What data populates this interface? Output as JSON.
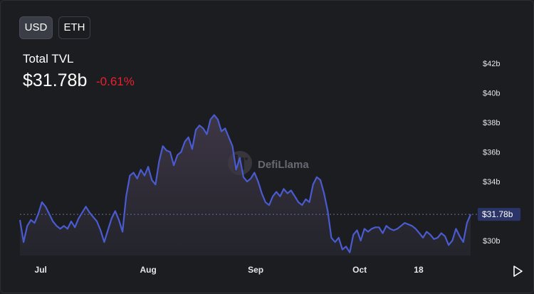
{
  "toggles": {
    "usd_label": "USD",
    "eth_label": "ETH",
    "active": "USD"
  },
  "summary": {
    "label": "Total TVL",
    "value": "$31.78b",
    "change": "-0.61%"
  },
  "watermark": "DefiLlama",
  "current_label": "$31.78b",
  "colors": {
    "line": "#4a5bd0",
    "negative": "#e8202e",
    "background": "#1c1d21",
    "current_badge": "#2b3568"
  },
  "chart_data": {
    "type": "area",
    "title": "",
    "xlabel": "",
    "ylabel": "",
    "ylim": [
      29.0,
      42.5
    ],
    "y_ticks": [
      {
        "value": 30,
        "label": "$30b"
      },
      {
        "value": 34,
        "label": "$34b"
      },
      {
        "value": 36,
        "label": "$36b"
      },
      {
        "value": 38,
        "label": "$38b"
      },
      {
        "value": 40,
        "label": "$40b"
      },
      {
        "value": 42,
        "label": "$42b"
      }
    ],
    "x_ticks": [
      {
        "label": "Jul",
        "day": 6
      },
      {
        "label": "Aug",
        "day": 37
      },
      {
        "label": "Sep",
        "day": 68
      },
      {
        "label": "Oct",
        "day": 98
      },
      {
        "label": "18",
        "day": 115
      }
    ],
    "x_range_days": [
      0,
      130
    ],
    "current_value": 31.78,
    "series": [
      {
        "values": [
          31.4,
          29.9,
          31.0,
          31.4,
          31.2,
          31.8,
          32.6,
          32.3,
          31.8,
          31.3,
          31.0,
          30.8,
          31.0,
          30.8,
          31.3,
          30.9,
          31.5,
          31.9,
          32.3,
          31.9,
          31.6,
          31.3,
          30.7,
          29.9,
          30.7,
          31.5,
          32.0,
          31.4,
          30.6,
          33.0,
          34.4,
          34.6,
          34.2,
          34.8,
          34.4,
          35.0,
          34.1,
          33.8,
          35.4,
          36.4,
          36.1,
          36.0,
          35.1,
          35.8,
          36.0,
          36.7,
          37.0,
          36.2,
          37.5,
          37.8,
          37.6,
          37.2,
          38.2,
          38.5,
          38.2,
          37.4,
          37.6,
          37.0,
          36.4,
          34.8,
          35.6,
          34.3,
          34.0,
          34.2,
          34.6,
          34.0,
          33.2,
          32.6,
          32.4,
          33.0,
          33.3,
          33.0,
          33.5,
          33.2,
          33.4,
          33.0,
          32.6,
          32.4,
          32.8,
          32.6,
          33.8,
          34.3,
          34.1,
          33.2,
          32.0,
          30.2,
          29.9,
          30.2,
          29.4,
          29.6,
          29.2,
          30.4,
          30.7,
          30.0,
          30.8,
          30.6,
          30.8,
          30.9,
          30.9,
          30.5,
          31.0,
          30.8,
          30.7,
          30.8,
          31.0,
          31.2,
          31.1,
          31.0,
          30.8,
          30.5,
          30.2,
          30.6,
          30.4,
          30.1,
          30.2,
          30.5,
          30.3,
          29.7,
          30.0,
          30.8,
          30.3,
          29.9,
          31.2,
          31.78
        ]
      }
    ]
  }
}
